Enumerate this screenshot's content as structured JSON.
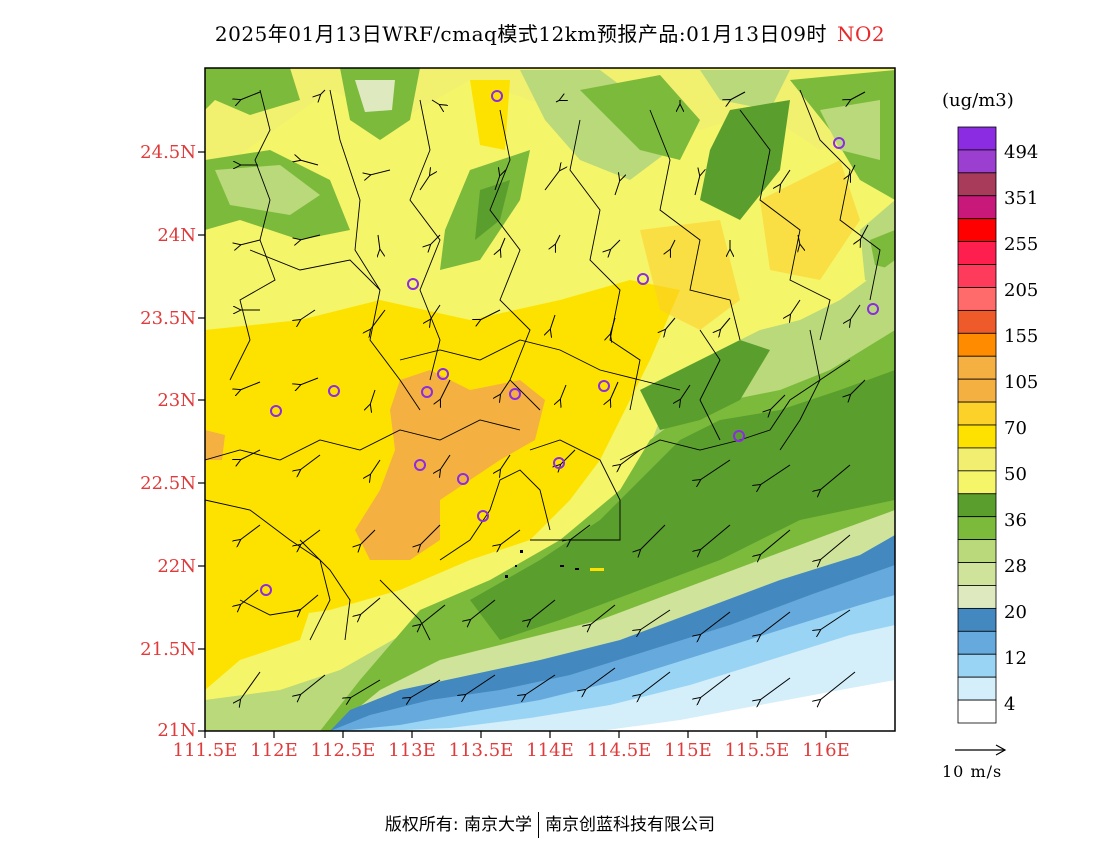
{
  "title": {
    "main": "2025年01月13日WRF/cmaq模式12km预报产品:01月13日09时",
    "pollutant": "NO2"
  },
  "map": {
    "lat_ticks": [
      "24.5N",
      "24N",
      "23.5N",
      "23N",
      "22.5N",
      "22N",
      "21.5N",
      "21N"
    ],
    "lon_ticks": [
      "111.5E",
      "112E",
      "112.5E",
      "113E",
      "113.5E",
      "114E",
      "114.5E",
      "115E",
      "115.5E",
      "116E"
    ],
    "lat_range": [
      21.0,
      25.0
    ],
    "lon_range": [
      111.5,
      116.5
    ]
  },
  "legend": {
    "unit": "(ug/m3)",
    "labels": [
      "494",
      "351",
      "255",
      "205",
      "155",
      "105",
      "70",
      "50",
      "36",
      "28",
      "20",
      "12",
      "4"
    ],
    "colors": [
      "#8b2be2",
      "#9a3fd0",
      "#a83a5a",
      "#c8187a",
      "#ff0000",
      "#ff1f4f",
      "#ff3b5b",
      "#ff6a6a",
      "#ef5a2a",
      "#ff8c00",
      "#f5b042",
      "#f5b042",
      "#fcd12a",
      "#fde200",
      "#f2ef70",
      "#f5f56a",
      "#5a9e2e",
      "#7cba3c",
      "#b9d97a",
      "#cfe49a",
      "#dfe9bf",
      "#4488c0",
      "#66aadd",
      "#99d4f4",
      "#d4eefa",
      "#ffffff"
    ]
  },
  "wind_reference": {
    "label": "10 m/s"
  },
  "copyright": {
    "left": "版权所有: 南京大学",
    "right": "南京创蓝科技有限公司"
  }
}
